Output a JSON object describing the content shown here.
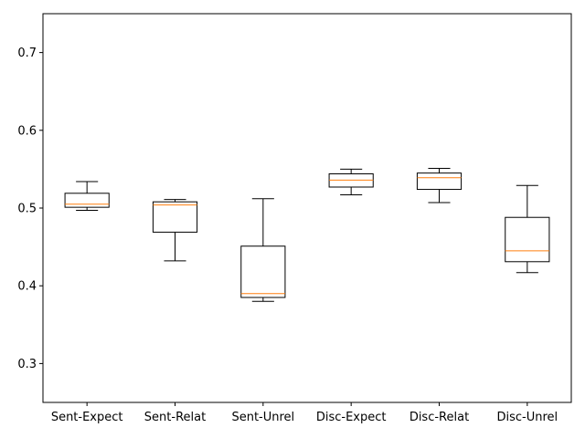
{
  "chart_data": {
    "type": "boxplot",
    "title": "",
    "xlabel": "",
    "ylabel": "",
    "ylim": [
      0.25,
      0.75
    ],
    "yticks": [
      0.3,
      0.4,
      0.5,
      0.6,
      0.7
    ],
    "ytick_labels": [
      "0.3",
      "0.4",
      "0.5",
      "0.6",
      "0.7"
    ],
    "grid": false,
    "categories": [
      "Sent-Expect",
      "Sent-Relat",
      "Sent-Unrel",
      "Disc-Expect",
      "Disc-Relat",
      "Disc-Unrel"
    ],
    "boxes": [
      {
        "whisker_low": 0.497,
        "q1": 0.501,
        "median": 0.505,
        "q3": 0.519,
        "whisker_high": 0.534
      },
      {
        "whisker_low": 0.432,
        "q1": 0.469,
        "median": 0.504,
        "q3": 0.508,
        "whisker_high": 0.511
      },
      {
        "whisker_low": 0.38,
        "q1": 0.385,
        "median": 0.39,
        "q3": 0.451,
        "whisker_high": 0.512
      },
      {
        "whisker_low": 0.517,
        "q1": 0.527,
        "median": 0.536,
        "q3": 0.544,
        "whisker_high": 0.55
      },
      {
        "whisker_low": 0.507,
        "q1": 0.524,
        "median": 0.539,
        "q3": 0.545,
        "whisker_high": 0.551
      },
      {
        "whisker_low": 0.417,
        "q1": 0.431,
        "median": 0.445,
        "q3": 0.488,
        "whisker_high": 0.529
      }
    ],
    "colors": {
      "box": "#000000",
      "median": "#ff7f0e",
      "axis": "#000000"
    }
  }
}
